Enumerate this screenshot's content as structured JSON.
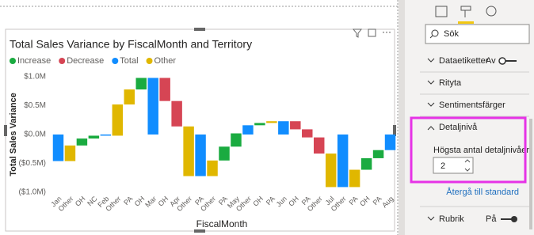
{
  "chart_data": {
    "type": "waterfall",
    "title": "Total Sales Variance by FiscalMonth and Territory",
    "x_label": "FiscalMonth",
    "y_label": "Total Sales Variance",
    "categories": [
      "Jan",
      "Other",
      "OH",
      "NC",
      "Feb",
      "Other",
      "PA",
      "OH",
      "Mar",
      "OH",
      "Apr",
      "Other",
      "PA",
      "Other",
      "PA",
      "May",
      "Other",
      "OH",
      "PA",
      "Jun",
      "OH",
      "PA",
      "Other",
      "Jul",
      "Other",
      "PA",
      "OH",
      "PA",
      "Aug"
    ],
    "series": [
      {
        "name": "Increase",
        "color": "#1aab40",
        "values": [
          null,
          null,
          120000,
          50000,
          null,
          null,
          null,
          200000,
          null,
          null,
          null,
          null,
          null,
          null,
          240000,
          230000,
          null,
          40000,
          null,
          null,
          null,
          null,
          null,
          null,
          null,
          null,
          200000,
          140000,
          null
        ]
      },
      {
        "name": "Decrease",
        "color": "#d64554",
        "values": [
          null,
          null,
          null,
          null,
          null,
          null,
          null,
          null,
          null,
          -400000,
          -440000,
          null,
          null,
          null,
          null,
          null,
          null,
          null,
          null,
          null,
          -140000,
          -140000,
          -280000,
          null,
          null,
          null,
          null,
          null,
          null
        ]
      },
      {
        "name": "Total",
        "color": "#118dff",
        "values": [
          -460000,
          null,
          null,
          null,
          -20000,
          null,
          null,
          null,
          980000,
          null,
          null,
          null,
          -720000,
          null,
          null,
          null,
          160000,
          null,
          null,
          230000,
          null,
          null,
          null,
          null,
          -910000,
          null,
          null,
          null,
          -270000
        ]
      },
      {
        "name": "Other",
        "color": "#e0b700",
        "values": [
          null,
          270000,
          null,
          null,
          null,
          540000,
          260000,
          null,
          null,
          null,
          null,
          -860000,
          null,
          270000,
          null,
          null,
          null,
          null,
          30000,
          null,
          null,
          null,
          null,
          -580000,
          null,
          300000,
          null,
          null,
          null
        ]
      }
    ],
    "ylim": [
      -1000000,
      1000000
    ],
    "yticks": [
      {
        "value": 1000000,
        "label": "$1.0M"
      },
      {
        "value": 500000,
        "label": "$0.5M"
      },
      {
        "value": 0,
        "label": "$0.0M"
      },
      {
        "value": -500000,
        "label": "($0.5M)"
      },
      {
        "value": -1000000,
        "label": "($1.0M)"
      }
    ],
    "grid": false,
    "legend": "top-left"
  },
  "pane": {
    "search": "Sök",
    "sections": [
      {
        "label": "Dataetiketter",
        "state": "Av"
      },
      {
        "label": "Rityta"
      },
      {
        "label": "Sentimentsfärger"
      },
      {
        "label": "Detaljnivå"
      }
    ],
    "detail": {
      "field_label": "Högsta antal detaljnivåer",
      "value": 2,
      "reset": "Återgå till standard"
    },
    "last_section": {
      "label": "Rubrik",
      "state": "På"
    }
  }
}
